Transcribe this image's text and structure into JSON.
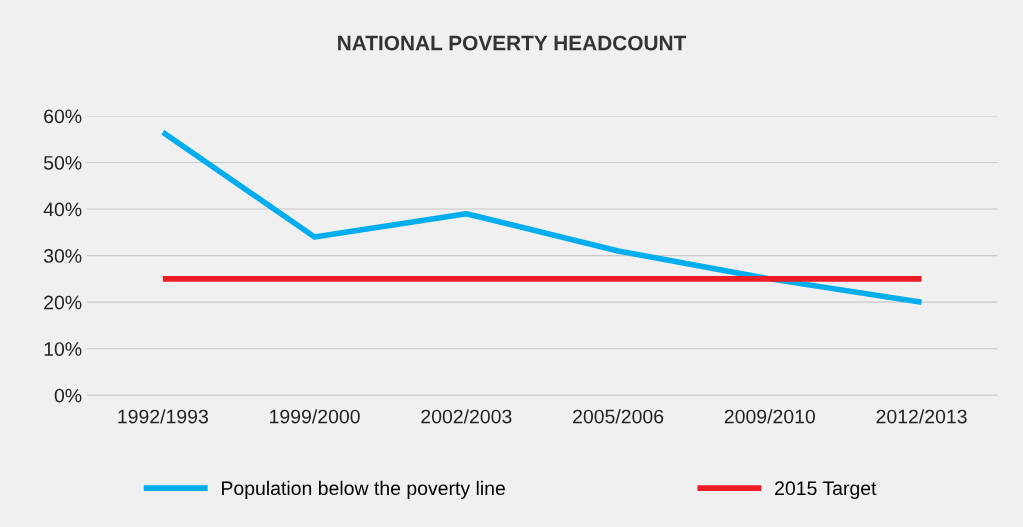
{
  "chart_data": {
    "type": "line",
    "title": "NATIONAL POVERTY HEADCOUNT",
    "categories": [
      "1992/1993",
      "1999/2000",
      "2002/2003",
      "2005/2006",
      "2009/2010",
      "2012/2013"
    ],
    "series": [
      {
        "name": "Population below the poverty line",
        "color": "#00aeef",
        "values": [
          56.5,
          34,
          39,
          31,
          25,
          20
        ]
      },
      {
        "name": "2015 Target",
        "color": "#ed1c24",
        "values": [
          25,
          25,
          25,
          25,
          25,
          25
        ]
      }
    ],
    "ylim": [
      0,
      60
    ],
    "yticks": [
      {
        "value": 0,
        "label": "0%"
      },
      {
        "value": 10,
        "label": "10%"
      },
      {
        "value": 20,
        "label": "20%"
      },
      {
        "value": 30,
        "label": "30%"
      },
      {
        "value": 40,
        "label": "40%"
      },
      {
        "value": 50,
        "label": "50%"
      },
      {
        "value": 60,
        "label": "60%"
      }
    ],
    "grid": "y",
    "legend": "bottom",
    "marker": "none",
    "line_style": "solid"
  }
}
